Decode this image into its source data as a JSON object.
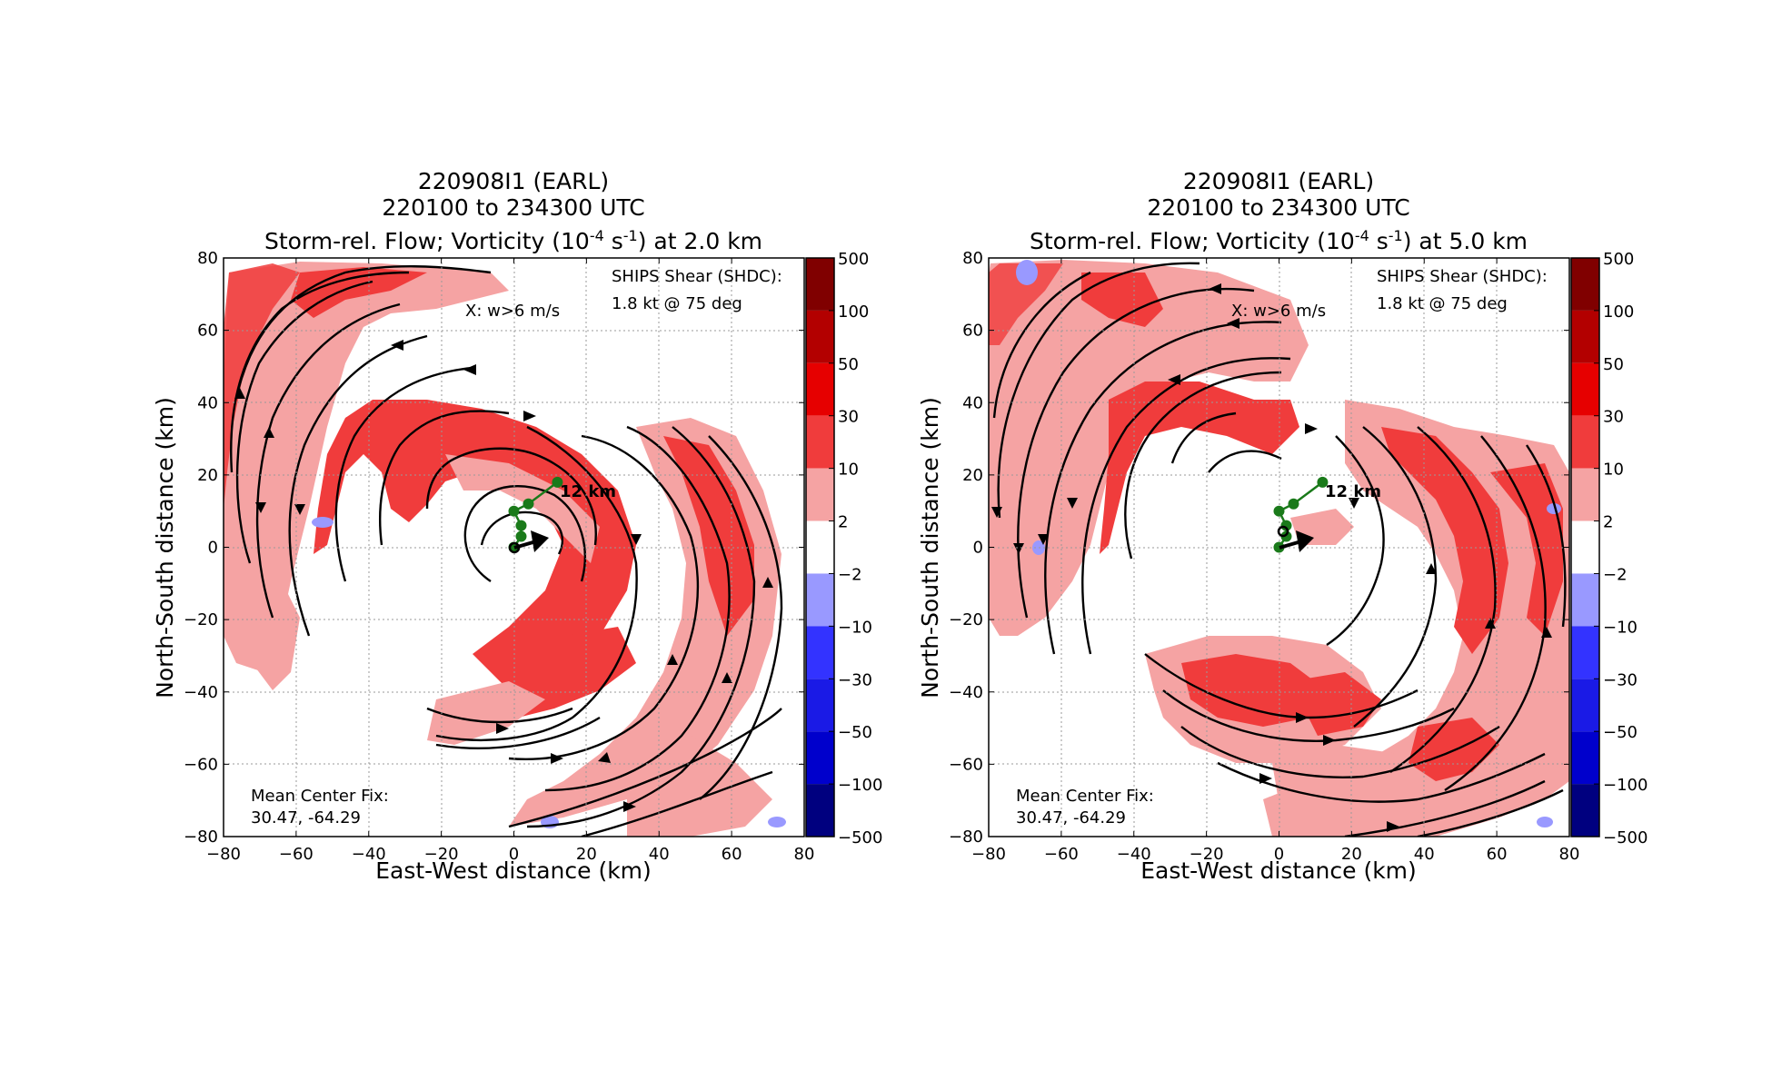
{
  "figure": {
    "colors": {
      "neg500": "#00007f",
      "neg100": "#0000cc",
      "neg50": "#1a1ae6",
      "neg30": "#3333ff",
      "neg10": "#9999ff",
      "zero": "#ffffff",
      "pos2": "#f5a3a3",
      "pos10": "#f03c3c",
      "pos30": "#e60000",
      "pos50": "#b30000",
      "pos100": "#800000",
      "track": "#1a7a1a",
      "grid": "#9a9a9a"
    }
  },
  "chart_data": [
    {
      "type": "heatmap",
      "panel": "left",
      "title_lines": [
        "220908I1 (EARL)",
        "220100 to 234300 UTC"
      ],
      "title_main": "Storm-rel. Flow; Vorticity (10",
      "title_exp1": "-4",
      "title_mid": " s",
      "title_exp2": "-1",
      "title_end": ") at 2.0 km",
      "xlabel": "East-West distance (km)",
      "ylabel": "North-South distance (km)",
      "xlim": [
        -80,
        80
      ],
      "ylim": [
        -80,
        80
      ],
      "xticks": [
        "−80",
        "−60",
        "−40",
        "−20",
        "0",
        "20",
        "40",
        "60",
        "80"
      ],
      "yticks": [
        "−80",
        "−60",
        "−40",
        "−20",
        "0",
        "20",
        "40",
        "60",
        "80"
      ],
      "grid": true,
      "shear_lines": [
        "SHIPS Shear (SHDC):",
        "1.8 kt @ 75 deg"
      ],
      "w_note": "X: w>6 m/s",
      "center_fix_lines": [
        "Mean Center Fix:",
        "30.47, -64.29"
      ],
      "track_label": "12 km",
      "track": [
        [
          0,
          0
        ],
        [
          2,
          3
        ],
        [
          2,
          6
        ],
        [
          0,
          10
        ],
        [
          4,
          12
        ],
        [
          12,
          18
        ]
      ],
      "shear_vector": [
        [
          0,
          0
        ],
        [
          10,
          3
        ]
      ],
      "colorbar_ticks": [
        "500",
        "100",
        "50",
        "30",
        "10",
        "2",
        "−2",
        "−10",
        "−30",
        "−50",
        "−100",
        "−500"
      ]
    },
    {
      "type": "heatmap",
      "panel": "right",
      "title_lines": [
        "220908I1 (EARL)",
        "220100 to 234300 UTC"
      ],
      "title_main": "Storm-rel. Flow; Vorticity (10",
      "title_exp1": "-4",
      "title_mid": " s",
      "title_exp2": "-1",
      "title_end": ") at 5.0 km",
      "xlabel": "East-West distance (km)",
      "ylabel": "North-South distance (km)",
      "xlim": [
        -80,
        80
      ],
      "ylim": [
        -80,
        80
      ],
      "xticks": [
        "−80",
        "−60",
        "−40",
        "−20",
        "0",
        "20",
        "40",
        "60",
        "80"
      ],
      "yticks": [
        "−80",
        "−60",
        "−40",
        "−20",
        "0",
        "20",
        "40",
        "60",
        "80"
      ],
      "grid": true,
      "shear_lines": [
        "SHIPS Shear (SHDC):",
        "1.8 kt @ 75 deg"
      ],
      "w_note": "X: w>6 m/s",
      "center_fix_lines": [
        "Mean Center Fix:",
        "30.47, -64.29"
      ],
      "track_label": "12 km",
      "track": [
        [
          0,
          0
        ],
        [
          2,
          3
        ],
        [
          2,
          6
        ],
        [
          0,
          10
        ],
        [
          4,
          12
        ],
        [
          12,
          18
        ]
      ],
      "shear_vector": [
        [
          0,
          0
        ],
        [
          10,
          3
        ]
      ],
      "colorbar_ticks": [
        "500",
        "100",
        "50",
        "30",
        "10",
        "2",
        "−2",
        "−10",
        "−30",
        "−50",
        "−100",
        "−500"
      ]
    }
  ]
}
